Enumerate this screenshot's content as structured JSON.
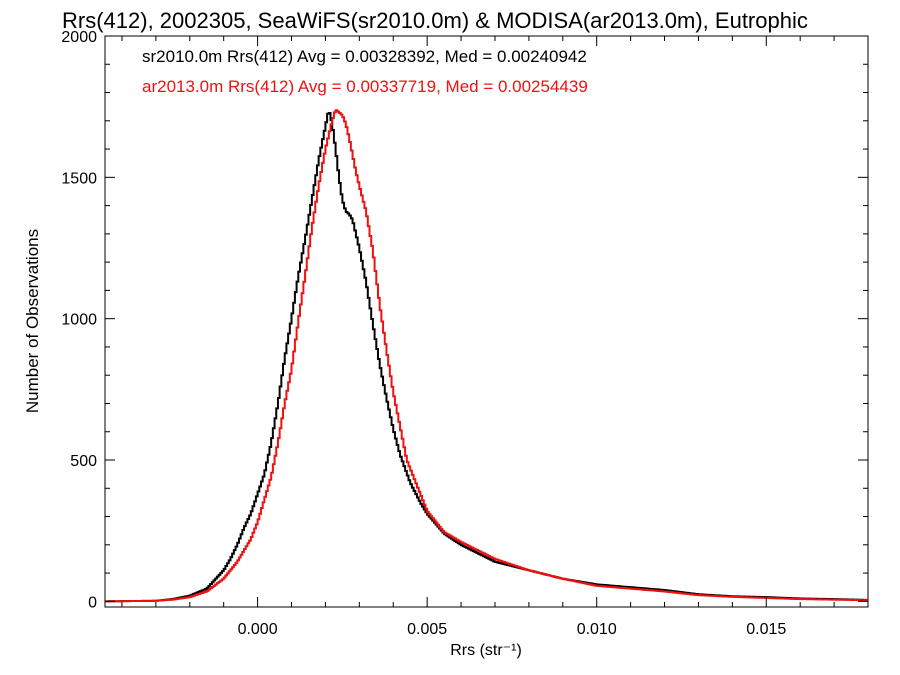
{
  "chart_data": {
    "type": "line",
    "title": "Rrs(412), 2002305, SeaWiFS(sr2010.0m) & MODISA(ar2013.0m), Eutrophic",
    "xlabel": "Rrs (str⁻¹)",
    "ylabel": "Number of Observations",
    "xlim": [
      -0.0045,
      0.018
    ],
    "ylim": [
      -20,
      2000
    ],
    "xticks": [
      0.0,
      0.005,
      0.01,
      0.015
    ],
    "xtick_labels": [
      "0.000",
      "0.005",
      "0.010",
      "0.015"
    ],
    "yticks": [
      0,
      500,
      1000,
      1500,
      2000
    ],
    "ytick_labels": [
      "0",
      "500",
      "1000",
      "1500",
      "2000"
    ],
    "grid": false,
    "legend_position": "top-left",
    "series": [
      {
        "name": "sr2010.0m Rrs(412) Avg = 0.00328392, Med = 0.00240942",
        "color": "#000000",
        "points": [
          [
            -0.0045,
            0
          ],
          [
            -0.003,
            2
          ],
          [
            -0.0025,
            8
          ],
          [
            -0.002,
            20
          ],
          [
            -0.0015,
            45
          ],
          [
            -0.001,
            110
          ],
          [
            -0.0008,
            150
          ],
          [
            -0.0006,
            200
          ],
          [
            -0.0004,
            260
          ],
          [
            -0.0002,
            310
          ],
          [
            0.0,
            380
          ],
          [
            0.0002,
            450
          ],
          [
            0.0004,
            560
          ],
          [
            0.0006,
            700
          ],
          [
            0.0008,
            860
          ],
          [
            0.001,
            1000
          ],
          [
            0.0012,
            1150
          ],
          [
            0.0014,
            1280
          ],
          [
            0.0016,
            1420
          ],
          [
            0.0018,
            1560
          ],
          [
            0.0019,
            1620
          ],
          [
            0.002,
            1680
          ],
          [
            0.0021,
            1740
          ],
          [
            0.0022,
            1690
          ],
          [
            0.0023,
            1600
          ],
          [
            0.0024,
            1500
          ],
          [
            0.0025,
            1420
          ],
          [
            0.0026,
            1380
          ],
          [
            0.0027,
            1370
          ],
          [
            0.0028,
            1350
          ],
          [
            0.003,
            1250
          ],
          [
            0.0032,
            1130
          ],
          [
            0.0034,
            980
          ],
          [
            0.0036,
            840
          ],
          [
            0.0038,
            720
          ],
          [
            0.004,
            610
          ],
          [
            0.0042,
            520
          ],
          [
            0.0045,
            420
          ],
          [
            0.0048,
            350
          ],
          [
            0.005,
            310
          ],
          [
            0.0055,
            240
          ],
          [
            0.006,
            200
          ],
          [
            0.0065,
            170
          ],
          [
            0.007,
            140
          ],
          [
            0.008,
            110
          ],
          [
            0.009,
            80
          ],
          [
            0.01,
            60
          ],
          [
            0.011,
            50
          ],
          [
            0.012,
            40
          ],
          [
            0.013,
            25
          ],
          [
            0.014,
            18
          ],
          [
            0.015,
            15
          ],
          [
            0.016,
            10
          ],
          [
            0.017,
            8
          ],
          [
            0.018,
            5
          ]
        ]
      },
      {
        "name": "ar2013.0m Rrs(412) Avg = 0.00337719, Med = 0.00254439",
        "color": "#ee1111",
        "points": [
          [
            -0.0045,
            0
          ],
          [
            -0.003,
            2
          ],
          [
            -0.0025,
            6
          ],
          [
            -0.002,
            15
          ],
          [
            -0.0015,
            35
          ],
          [
            -0.001,
            80
          ],
          [
            -0.0008,
            110
          ],
          [
            -0.0006,
            140
          ],
          [
            -0.0004,
            180
          ],
          [
            -0.0002,
            220
          ],
          [
            0.0,
            280
          ],
          [
            0.0002,
            360
          ],
          [
            0.0004,
            440
          ],
          [
            0.0006,
            560
          ],
          [
            0.0008,
            700
          ],
          [
            0.001,
            820
          ],
          [
            0.0012,
            990
          ],
          [
            0.0014,
            1150
          ],
          [
            0.0016,
            1320
          ],
          [
            0.0018,
            1470
          ],
          [
            0.002,
            1600
          ],
          [
            0.0022,
            1700
          ],
          [
            0.0023,
            1740
          ],
          [
            0.0024,
            1730
          ],
          [
            0.0025,
            1720
          ],
          [
            0.0026,
            1690
          ],
          [
            0.0027,
            1640
          ],
          [
            0.0028,
            1580
          ],
          [
            0.0029,
            1520
          ],
          [
            0.003,
            1470
          ],
          [
            0.0032,
            1380
          ],
          [
            0.0034,
            1240
          ],
          [
            0.0036,
            1050
          ],
          [
            0.0038,
            890
          ],
          [
            0.004,
            740
          ],
          [
            0.0042,
            620
          ],
          [
            0.0044,
            500
          ],
          [
            0.0046,
            440
          ],
          [
            0.0048,
            380
          ],
          [
            0.005,
            320
          ],
          [
            0.0055,
            245
          ],
          [
            0.006,
            210
          ],
          [
            0.0065,
            180
          ],
          [
            0.007,
            150
          ],
          [
            0.008,
            110
          ],
          [
            0.009,
            80
          ],
          [
            0.01,
            55
          ],
          [
            0.011,
            45
          ],
          [
            0.012,
            35
          ],
          [
            0.013,
            22
          ],
          [
            0.014,
            16
          ],
          [
            0.015,
            12
          ],
          [
            0.016,
            8
          ],
          [
            0.017,
            6
          ],
          [
            0.018,
            4
          ]
        ]
      }
    ]
  }
}
